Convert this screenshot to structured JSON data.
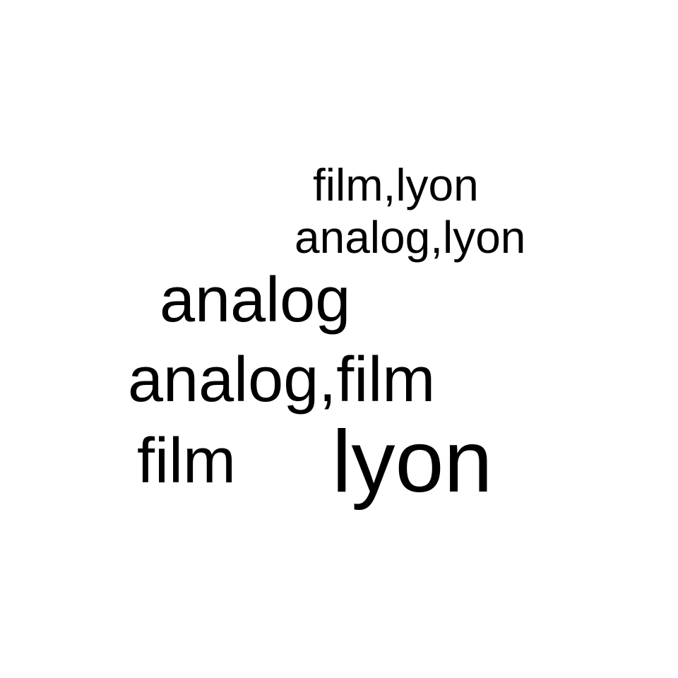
{
  "words": [
    {
      "text": "film,lyon"
    },
    {
      "text": "analog,lyon"
    },
    {
      "text": "analog"
    },
    {
      "text": "analog,film"
    },
    {
      "text": "film"
    },
    {
      "text": "lyon"
    }
  ],
  "colors": {
    "background": "#ffffff",
    "text": "#000000"
  }
}
